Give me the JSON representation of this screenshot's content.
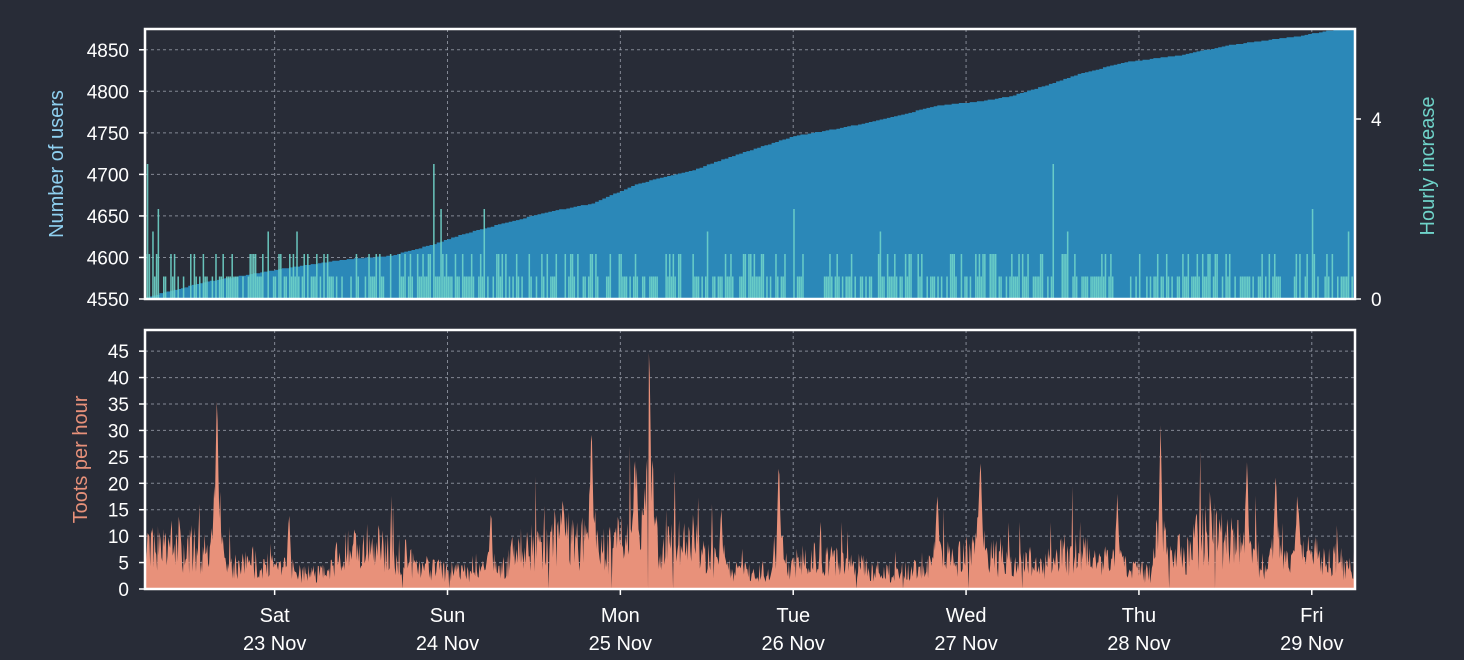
{
  "theme": {
    "background": "#282c37",
    "frame": "#ffffff",
    "grid": "#aab0bc",
    "text": "#ffffff",
    "users_color": "#2b88b8",
    "users_label_color": "#8fd0f0",
    "increase_color": "#6fd3c9",
    "toots_color": "#e8917a"
  },
  "chart_data": [
    {
      "id": "users",
      "type": "area",
      "ylabel": "Number of users",
      "y2label": "Hourly increase",
      "ylim": [
        4550,
        4875
      ],
      "yticks": [
        4550,
        4600,
        4650,
        4700,
        4750,
        4800,
        4850
      ],
      "y2lim": [
        0,
        6
      ],
      "y2ticks": [
        0,
        4
      ],
      "grid": true,
      "x_range_hours": [
        0,
        168
      ],
      "series": [
        {
          "type": "area",
          "points": [
            [
              0,
              4552
            ],
            [
              8,
              4570
            ],
            [
              20,
              4588
            ],
            [
              28,
              4598
            ],
            [
              34,
              4602
            ],
            [
              40,
              4616
            ],
            [
              44,
              4628
            ],
            [
              50,
              4642
            ],
            [
              56,
              4655
            ],
            [
              62,
              4665
            ],
            [
              68,
              4688
            ],
            [
              72,
              4697
            ],
            [
              76,
              4705
            ],
            [
              80,
              4718
            ],
            [
              86,
              4735
            ],
            [
              90,
              4746
            ],
            [
              96,
              4755
            ],
            [
              100,
              4762
            ],
            [
              104,
              4770
            ],
            [
              110,
              4783
            ],
            [
              116,
              4788
            ],
            [
              120,
              4794
            ],
            [
              126,
              4810
            ],
            [
              130,
              4822
            ],
            [
              136,
              4835
            ],
            [
              144,
              4844
            ],
            [
              150,
              4855
            ],
            [
              156,
              4862
            ],
            [
              160,
              4866
            ],
            [
              164,
              4873
            ],
            [
              168,
              4875
            ]
          ]
        },
        {
          "type": "bar",
          "axis": "y2",
          "spikes": [
            [
              0.3,
              3
            ],
            [
              1,
              1.5
            ],
            [
              1.7,
              2
            ],
            [
              4,
              1
            ],
            [
              8,
              1
            ],
            [
              12,
              1
            ],
            [
              17,
              1.5
            ],
            [
              21,
              1.5
            ],
            [
              32,
              1
            ],
            [
              36,
              1
            ],
            [
              40,
              3
            ],
            [
              41,
              2
            ],
            [
              44,
              1
            ],
            [
              47,
              2
            ],
            [
              50,
              1
            ],
            [
              55,
              1
            ],
            [
              60,
              1
            ],
            [
              66,
              1
            ],
            [
              74,
              1
            ],
            [
              78,
              1.5
            ],
            [
              84,
              1
            ],
            [
              90,
              2
            ],
            [
              96,
              1
            ],
            [
              102,
              1.5
            ],
            [
              106,
              1
            ],
            [
              112,
              1
            ],
            [
              118,
              1
            ],
            [
              126,
              3
            ],
            [
              128,
              1.5
            ],
            [
              134,
              1
            ],
            [
              138,
              1
            ],
            [
              144,
              1
            ],
            [
              150,
              1
            ],
            [
              156,
              1
            ],
            [
              162,
              2
            ],
            [
              164,
              1
            ],
            [
              167,
              1.5
            ]
          ]
        }
      ]
    },
    {
      "id": "toots",
      "type": "area",
      "ylabel": "Toots per hour",
      "ylim": [
        0,
        49
      ],
      "yticks": [
        0,
        5,
        10,
        15,
        20,
        25,
        30,
        35,
        40,
        45
      ],
      "grid": true,
      "x_range_hours": [
        0,
        168
      ],
      "base": [
        [
          0,
          7
        ],
        [
          4,
          9
        ],
        [
          8,
          7
        ],
        [
          10,
          6
        ],
        [
          12,
          4
        ],
        [
          16,
          5
        ],
        [
          20,
          3
        ],
        [
          24,
          3
        ],
        [
          28,
          7
        ],
        [
          32,
          8
        ],
        [
          36,
          6
        ],
        [
          40,
          4
        ],
        [
          44,
          3
        ],
        [
          48,
          4
        ],
        [
          52,
          7
        ],
        [
          56,
          10
        ],
        [
          60,
          9
        ],
        [
          62,
          11
        ],
        [
          64,
          7
        ],
        [
          68,
          11
        ],
        [
          72,
          8
        ],
        [
          76,
          9
        ],
        [
          80,
          4
        ],
        [
          84,
          3
        ],
        [
          88,
          4
        ],
        [
          92,
          6
        ],
        [
          96,
          5
        ],
        [
          100,
          4
        ],
        [
          104,
          3
        ],
        [
          108,
          4
        ],
        [
          112,
          6
        ],
        [
          116,
          7
        ],
        [
          120,
          5
        ],
        [
          124,
          4
        ],
        [
          128,
          7
        ],
        [
          132,
          6
        ],
        [
          136,
          4
        ],
        [
          140,
          3
        ],
        [
          144,
          7
        ],
        [
          148,
          11
        ],
        [
          152,
          9
        ],
        [
          156,
          4
        ],
        [
          160,
          6
        ],
        [
          164,
          7
        ],
        [
          168,
          3
        ]
      ],
      "spikes": [
        [
          10,
          39
        ],
        [
          20,
          15
        ],
        [
          48,
          14
        ],
        [
          58,
          17
        ],
        [
          62,
          32
        ],
        [
          68,
          25
        ],
        [
          70,
          48
        ],
        [
          80,
          16
        ],
        [
          88,
          25
        ],
        [
          110,
          19
        ],
        [
          116,
          26
        ],
        [
          135,
          18
        ],
        [
          141,
          31
        ],
        [
          153,
          24
        ],
        [
          157,
          23
        ],
        [
          160,
          19
        ]
      ]
    }
  ],
  "x_axis": {
    "ticks": [
      {
        "hour": 18,
        "day": "Sat",
        "date": "23 Nov"
      },
      {
        "hour": 42,
        "day": "Sun",
        "date": "24 Nov"
      },
      {
        "hour": 66,
        "day": "Mon",
        "date": "25 Nov"
      },
      {
        "hour": 90,
        "day": "Tue",
        "date": "26 Nov"
      },
      {
        "hour": 114,
        "day": "Wed",
        "date": "27 Nov"
      },
      {
        "hour": 138,
        "day": "Thu",
        "date": "28 Nov"
      },
      {
        "hour": 162,
        "day": "Fri",
        "date": "29 Nov"
      }
    ]
  }
}
